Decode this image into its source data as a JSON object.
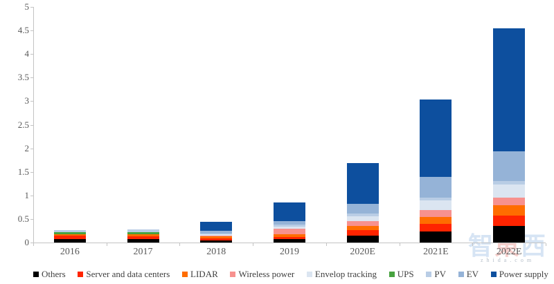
{
  "watermark": {
    "char_left": "智",
    "char_mid": "東",
    "char_right": "西",
    "site_text": "zhida.com"
  },
  "chart_data": {
    "type": "bar",
    "stacked": true,
    "title": "",
    "xlabel": "",
    "ylabel": "",
    "categories": [
      "2016",
      "2017",
      "2018",
      "2019",
      "2020E",
      "2021E",
      "2022E"
    ],
    "ylim": [
      0,
      5
    ],
    "ytick_step": 0.5,
    "ytick_labels": [
      "0",
      "0.5",
      "1",
      "1.5",
      "2",
      "2.5",
      "3",
      "3.5",
      "4",
      "4.5",
      "5"
    ],
    "grid": false,
    "legend_position": "bottom",
    "axis_color": "#c3c3c3",
    "tick_text_color": "#595959",
    "series": [
      {
        "name": "Others",
        "color": "#000000",
        "values": [
          0.08,
          0.07,
          0.04,
          0.07,
          0.15,
          0.23,
          0.35
        ]
      },
      {
        "name": "Server and data centers",
        "color": "#ff2400",
        "values": [
          0.06,
          0.06,
          0.05,
          0.05,
          0.11,
          0.16,
          0.22
        ]
      },
      {
        "name": "LIDAR",
        "color": "#ff6d00",
        "values": [
          0.04,
          0.05,
          0.04,
          0.05,
          0.09,
          0.16,
          0.22
        ]
      },
      {
        "name": "Wireless power",
        "color": "#f7918e",
        "values": [
          0.0,
          0.0,
          0.01,
          0.12,
          0.1,
          0.14,
          0.17
        ]
      },
      {
        "name": "Envelop tracking",
        "color": "#dbe5f1",
        "values": [
          0.0,
          0.0,
          0.03,
          0.05,
          0.11,
          0.2,
          0.27
        ]
      },
      {
        "name": "UPS",
        "color": "#47a23f",
        "values": [
          0.04,
          0.04,
          0.0,
          0.0,
          0.0,
          0.0,
          0.0
        ]
      },
      {
        "name": "PV",
        "color": "#b9cde5",
        "values": [
          0.04,
          0.06,
          0.02,
          0.04,
          0.06,
          0.07,
          0.07
        ]
      },
      {
        "name": "EV",
        "color": "#95b3d7",
        "values": [
          0.0,
          0.0,
          0.06,
          0.07,
          0.2,
          0.44,
          0.64
        ]
      },
      {
        "name": "Power supply",
        "color": "#0d4f9e",
        "values": [
          0.0,
          0.0,
          0.19,
          0.4,
          0.87,
          1.63,
          2.6
        ]
      }
    ],
    "totals": [
      0.26,
      0.28,
      0.44,
      0.85,
      1.69,
      3.03,
      4.54
    ]
  }
}
